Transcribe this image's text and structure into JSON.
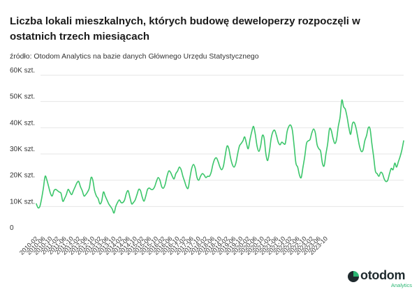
{
  "header": {
    "title": "Liczba lokali mieszkalnych, których budowę deweloperzy rozpoczęli w ostatnich trzech miesiącach",
    "source": "źródło: Otodom Analytics na bazie danych Głównego Urzędu Statystycznego"
  },
  "brand": {
    "name": "otodom",
    "sub": "Analytics",
    "color": "#2bb673",
    "icon": "otodom-logo-icon"
  },
  "chart_data": {
    "type": "line",
    "title": "",
    "xlabel": "",
    "ylabel": "",
    "ylim": [
      0,
      60000
    ],
    "yticks": [
      {
        "value": 0,
        "label": "0"
      },
      {
        "value": 10000,
        "label": "10K szt."
      },
      {
        "value": 20000,
        "label": "20K szt."
      },
      {
        "value": 30000,
        "label": "30K szt."
      },
      {
        "value": 40000,
        "label": "40K szt."
      },
      {
        "value": 50000,
        "label": "50K szt."
      },
      {
        "value": 60000,
        "label": "60K szt."
      }
    ],
    "grid": true,
    "legend": "none",
    "x_start": "2010-02",
    "xtick_labels": [
      "2010-02",
      "2010-06",
      "2010-10",
      "2011-02",
      "2011-06",
      "2011-10",
      "2012-02",
      "2012-06",
      "2012-10",
      "2013-02",
      "2013-06",
      "2013-10",
      "2014-02",
      "2014-06",
      "2014-10",
      "2015-02",
      "2015-06",
      "2015-10",
      "2016-02",
      "2016-06",
      "2016-10",
      "2017-02",
      "2017-06",
      "2017-10",
      "2018-02",
      "2018-06",
      "2018-10",
      "2019-02",
      "2019-06",
      "2019-10",
      "2020-02",
      "2020-06",
      "2020-10",
      "2021-02",
      "2021-06",
      "2021-10",
      "2022-02",
      "2022-06",
      "2022-10",
      "2023-02",
      "2023-06",
      "2023-10"
    ],
    "series": [
      {
        "color": "#3cc66b",
        "values": [
          11000,
          9500,
          10000,
          13000,
          17000,
          21500,
          20000,
          17500,
          15000,
          14000,
          16000,
          16500,
          16000,
          15500,
          15000,
          12000,
          13000,
          14500,
          16500,
          15500,
          14500,
          16000,
          17500,
          19000,
          19500,
          17500,
          16000,
          14000,
          14500,
          15500,
          17000,
          21000,
          20000,
          16000,
          14000,
          13000,
          11000,
          12000,
          15500,
          14000,
          12500,
          11000,
          10000,
          9000,
          7500,
          10000,
          11500,
          12500,
          11500,
          11500,
          12500,
          15000,
          16000,
          13500,
          11000,
          11500,
          12500,
          14500,
          16500,
          16000,
          13500,
          12000,
          14000,
          16500,
          17000,
          16500,
          16500,
          17500,
          19500,
          21000,
          20000,
          17500,
          17000,
          18500,
          21500,
          23500,
          23000,
          21500,
          20500,
          22500,
          23500,
          25000,
          24000,
          21500,
          19500,
          17500,
          17000,
          21000,
          24500,
          26000,
          24500,
          21000,
          20000,
          21500,
          22500,
          22000,
          21000,
          21500,
          21500,
          23000,
          26000,
          28000,
          28500,
          27000,
          25000,
          24000,
          25500,
          29500,
          33000,
          32000,
          28500,
          26000,
          25000,
          26500,
          30000,
          33000,
          34000,
          35000,
          36500,
          34000,
          32000,
          35500,
          38500,
          40500,
          37500,
          33000,
          31000,
          33000,
          37000,
          36000,
          30000,
          27500,
          31000,
          36000,
          38500,
          39000,
          37000,
          34500,
          33500,
          34500,
          34000,
          34000,
          38500,
          40500,
          41000,
          39000,
          33000,
          26500,
          25000,
          22000,
          21000,
          25000,
          29000,
          34000,
          35000,
          35500,
          38000,
          39500,
          38000,
          33500,
          32000,
          31000,
          26500,
          25500,
          30000,
          34000,
          39500,
          39000,
          36000,
          34000,
          35500,
          40500,
          44000,
          50500,
          48000,
          47000,
          44000,
          40000,
          37500,
          41500,
          42000,
          40000,
          36500,
          33000,
          31000,
          31500,
          35000,
          37000,
          40000,
          39500,
          34000,
          29000,
          23500,
          22500,
          21500,
          23000,
          22500,
          20500,
          19500,
          20000,
          22500,
          24500,
          24000,
          26500,
          25000,
          27000,
          29000,
          31500,
          35000
        ]
      }
    ]
  }
}
